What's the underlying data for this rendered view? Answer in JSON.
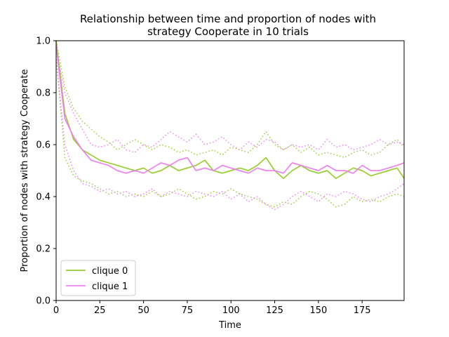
{
  "chart_data": {
    "type": "line",
    "title_line1": "Relationship between time and proportion of nodes with",
    "title_line2": "strategy Cooperate in 10 trials",
    "xlabel": "Time",
    "ylabel": "Proportion of nodes with strategy Cooperate",
    "xlim": [
      0,
      199
    ],
    "ylim": [
      0.0,
      1.0
    ],
    "x_ticks": [
      0,
      25,
      50,
      75,
      100,
      125,
      150,
      175
    ],
    "x_tick_labels": [
      "0",
      "25",
      "50",
      "75",
      "100",
      "125",
      "150",
      "175"
    ],
    "y_ticks": [
      0.0,
      0.2,
      0.4,
      0.6,
      0.8,
      1.0
    ],
    "y_tick_labels": [
      "0.0",
      "0.2",
      "0.4",
      "0.6",
      "0.8",
      "1.0"
    ],
    "grid": false,
    "legend_position": "lower-left",
    "x": [
      0,
      5,
      10,
      15,
      20,
      25,
      30,
      35,
      40,
      45,
      50,
      55,
      60,
      65,
      70,
      75,
      80,
      85,
      90,
      95,
      100,
      105,
      110,
      115,
      120,
      125,
      130,
      135,
      140,
      145,
      150,
      155,
      160,
      165,
      170,
      175,
      180,
      185,
      190,
      195,
      199
    ],
    "series": [
      {
        "name": "clique 0",
        "color": "#9acd32",
        "style": "solid",
        "values": [
          1.0,
          0.72,
          0.62,
          0.58,
          0.56,
          0.54,
          0.53,
          0.52,
          0.51,
          0.5,
          0.51,
          0.49,
          0.5,
          0.52,
          0.5,
          0.51,
          0.52,
          0.54,
          0.5,
          0.49,
          0.5,
          0.51,
          0.5,
          0.52,
          0.55,
          0.5,
          0.47,
          0.5,
          0.52,
          0.5,
          0.49,
          0.5,
          0.47,
          0.49,
          0.51,
          0.5,
          0.48,
          0.49,
          0.5,
          0.51,
          0.47
        ]
      },
      {
        "name": "clique 1",
        "color": "#ee82ee",
        "style": "solid",
        "values": [
          0.98,
          0.7,
          0.63,
          0.58,
          0.54,
          0.53,
          0.52,
          0.5,
          0.49,
          0.5,
          0.49,
          0.51,
          0.53,
          0.52,
          0.54,
          0.55,
          0.5,
          0.51,
          0.5,
          0.52,
          0.51,
          0.5,
          0.49,
          0.51,
          0.5,
          0.5,
          0.49,
          0.53,
          0.52,
          0.51,
          0.5,
          0.52,
          0.5,
          0.5,
          0.49,
          0.52,
          0.5,
          0.5,
          0.51,
          0.52,
          0.53
        ]
      },
      {
        "name": "",
        "color": "#9acd32",
        "style": "dotted",
        "values": [
          1.0,
          0.82,
          0.74,
          0.69,
          0.66,
          0.63,
          0.61,
          0.58,
          0.6,
          0.62,
          0.6,
          0.58,
          0.6,
          0.59,
          0.57,
          0.58,
          0.56,
          0.57,
          0.58,
          0.56,
          0.59,
          0.58,
          0.57,
          0.6,
          0.65,
          0.6,
          0.58,
          0.6,
          0.57,
          0.59,
          0.56,
          0.57,
          0.56,
          0.55,
          0.57,
          0.58,
          0.56,
          0.57,
          0.6,
          0.62,
          0.59
        ]
      },
      {
        "name": "",
        "color": "#9acd32",
        "style": "dotted",
        "values": [
          0.94,
          0.55,
          0.48,
          0.46,
          0.45,
          0.43,
          0.41,
          0.42,
          0.4,
          0.41,
          0.4,
          0.42,
          0.4,
          0.41,
          0.43,
          0.41,
          0.39,
          0.4,
          0.42,
          0.41,
          0.43,
          0.41,
          0.4,
          0.39,
          0.37,
          0.36,
          0.38,
          0.37,
          0.4,
          0.42,
          0.41,
          0.39,
          0.36,
          0.37,
          0.4,
          0.38,
          0.39,
          0.38,
          0.4,
          0.41,
          0.4
        ]
      },
      {
        "name": "",
        "color": "#ee82ee",
        "style": "dotted",
        "values": [
          0.97,
          0.8,
          0.72,
          0.66,
          0.6,
          0.59,
          0.6,
          0.62,
          0.58,
          0.57,
          0.6,
          0.59,
          0.62,
          0.65,
          0.63,
          0.61,
          0.64,
          0.6,
          0.61,
          0.63,
          0.6,
          0.58,
          0.61,
          0.59,
          0.62,
          0.61,
          0.58,
          0.6,
          0.59,
          0.6,
          0.58,
          0.62,
          0.59,
          0.6,
          0.58,
          0.59,
          0.6,
          0.62,
          0.6,
          0.61,
          0.6
        ]
      },
      {
        "name": "",
        "color": "#ee82ee",
        "style": "dotted",
        "values": [
          0.93,
          0.6,
          0.5,
          0.45,
          0.44,
          0.42,
          0.43,
          0.41,
          0.42,
          0.4,
          0.41,
          0.43,
          0.4,
          0.42,
          0.41,
          0.4,
          0.42,
          0.41,
          0.4,
          0.42,
          0.39,
          0.41,
          0.38,
          0.4,
          0.37,
          0.35,
          0.37,
          0.4,
          0.42,
          0.4,
          0.38,
          0.41,
          0.4,
          0.42,
          0.41,
          0.39,
          0.38,
          0.4,
          0.41,
          0.43,
          0.45
        ]
      }
    ]
  }
}
